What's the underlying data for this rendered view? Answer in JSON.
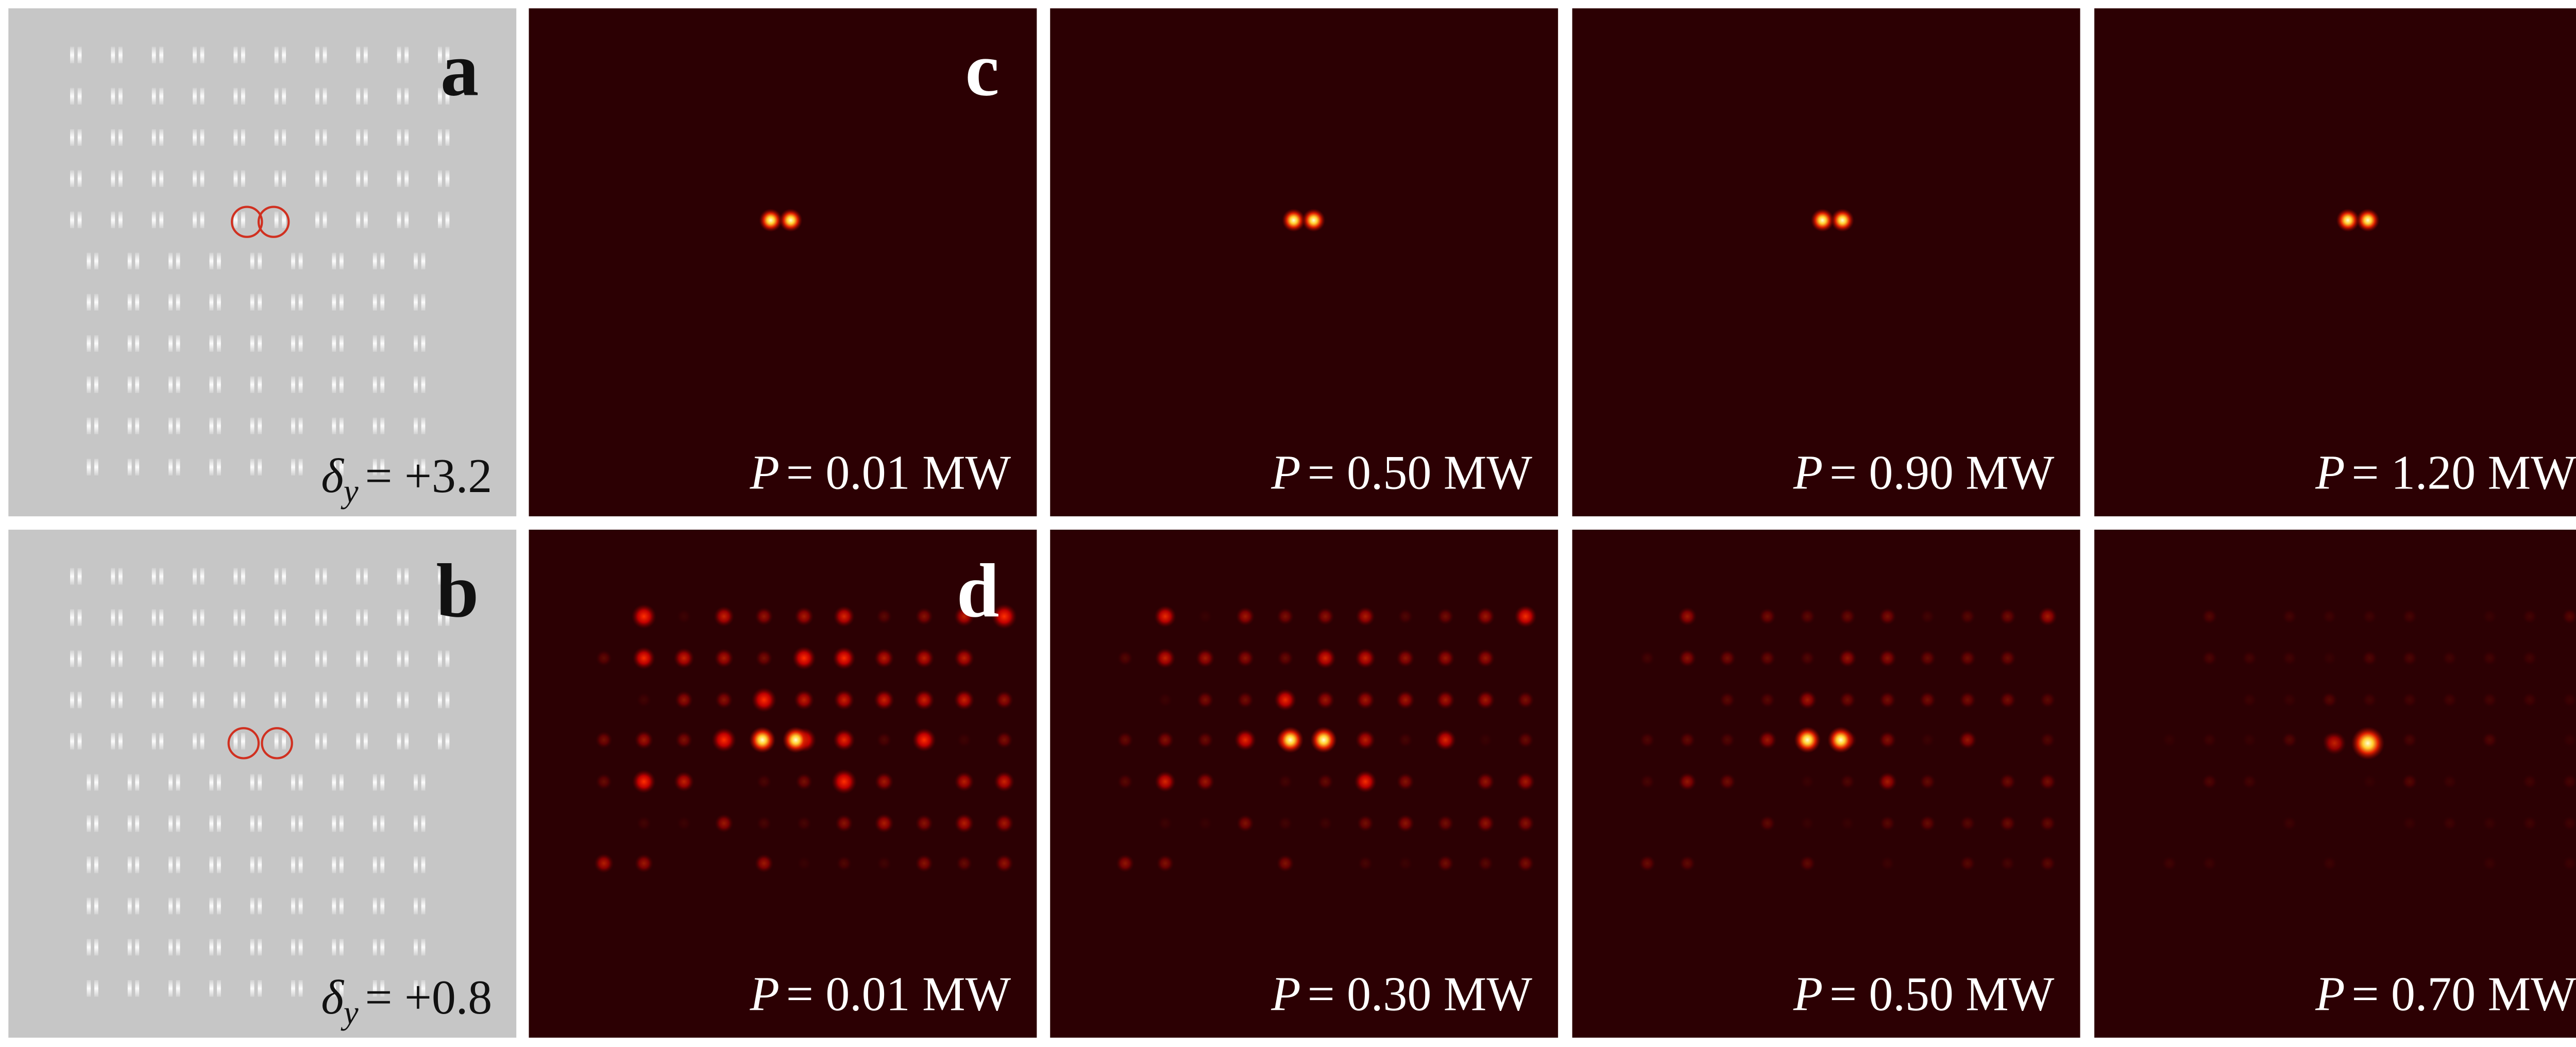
{
  "panel_a": {
    "label": "a",
    "annotation": {
      "symbol": "δ",
      "subscript": "y",
      "relation": "= +3.2"
    }
  },
  "panel_b": {
    "label": "b",
    "annotation": {
      "symbol": "δ",
      "subscript": "y",
      "relation": "= +0.8"
    }
  },
  "panel_c": {
    "label": "c",
    "frames": [
      {
        "variable": "P",
        "relation": "= 0.01 MW"
      },
      {
        "variable": "P",
        "relation": "= 0.50 MW"
      },
      {
        "variable": "P",
        "relation": "= 0.90 MW"
      },
      {
        "variable": "P",
        "relation": "= 1.20 MW"
      }
    ]
  },
  "panel_d": {
    "label": "d",
    "frames": [
      {
        "variable": "P",
        "relation": "= 0.01 MW"
      },
      {
        "variable": "P",
        "relation": "= 0.30 MW"
      },
      {
        "variable": "P",
        "relation": "= 0.50 MW"
      },
      {
        "variable": "P",
        "relation": "= 0.70 MW"
      }
    ]
  }
}
